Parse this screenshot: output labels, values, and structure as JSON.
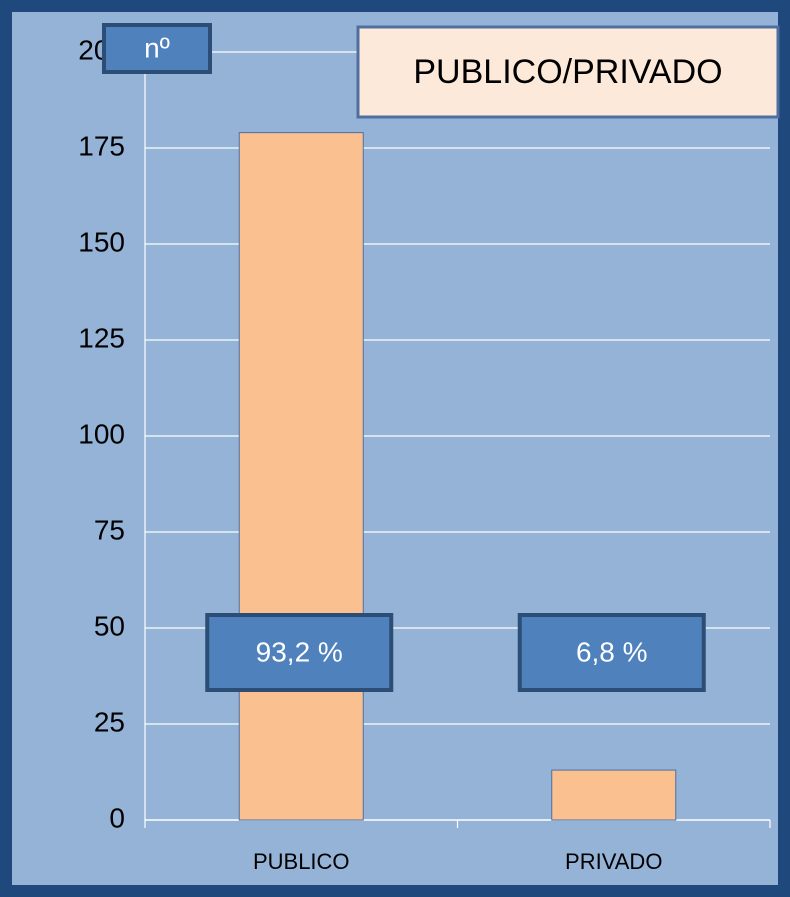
{
  "chart_data": {
    "type": "bar",
    "title": "PUBLICO/PRIVADO",
    "y_label": "nº",
    "categories": [
      "PUBLICO",
      "PRIVADO"
    ],
    "values": [
      179,
      13
    ],
    "color": "#fac090",
    "annotations": [
      "93,2 %",
      "6,8 %"
    ],
    "ylim": [
      0,
      200
    ],
    "yticks": [
      0,
      25,
      50,
      75,
      100,
      125,
      150,
      175,
      200
    ],
    "grid": true
  }
}
